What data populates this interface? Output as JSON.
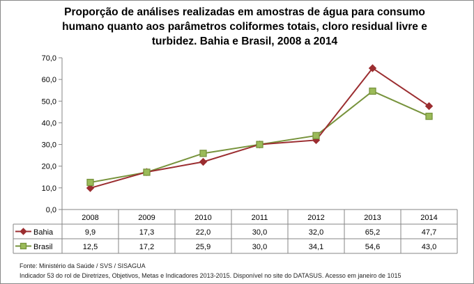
{
  "chart_data": {
    "type": "line",
    "title": "Proporção de análises realizadas em amostras de água para consumo humano quanto aos parâmetros coliformes totais, cloro residual livre e turbidez. Bahia e Brasil, 2008 a 2014",
    "categories": [
      "2008",
      "2009",
      "2010",
      "2011",
      "2012",
      "2013",
      "2014"
    ],
    "series": [
      {
        "name": "Bahia",
        "values": [
          9.9,
          17.3,
          22.0,
          30.0,
          32.0,
          65.2,
          47.7
        ],
        "labels": [
          "9,9",
          "17,3",
          "22,0",
          "30,0",
          "32,0",
          "65,2",
          "47,7"
        ],
        "color": "#9B2D30",
        "marker": "diamond"
      },
      {
        "name": "Brasil",
        "values": [
          12.5,
          17.2,
          25.9,
          30.0,
          34.1,
          54.6,
          43.0
        ],
        "labels": [
          "12,5",
          "17,2",
          "25,9",
          "30,0",
          "34,1",
          "54,6",
          "43,0"
        ],
        "color": "#77933C",
        "fill": "#9BBB59",
        "marker": "square"
      }
    ],
    "ylim": [
      0,
      70
    ],
    "yticks": [
      "0,0",
      "10,0",
      "20,0",
      "30,0",
      "40,0",
      "50,0",
      "60,0",
      "70,0"
    ],
    "grid": false,
    "legend": "data-table"
  },
  "footer": {
    "source": "Fonte: Ministério da Saúde / SVS / SISAGUA",
    "note": "Indicador 53 do rol de Diretrizes, Objetivos, Metas e Indicadores 2013-2015. Disponível no site do DATASUS. Acesso em janeiro de 1015"
  }
}
